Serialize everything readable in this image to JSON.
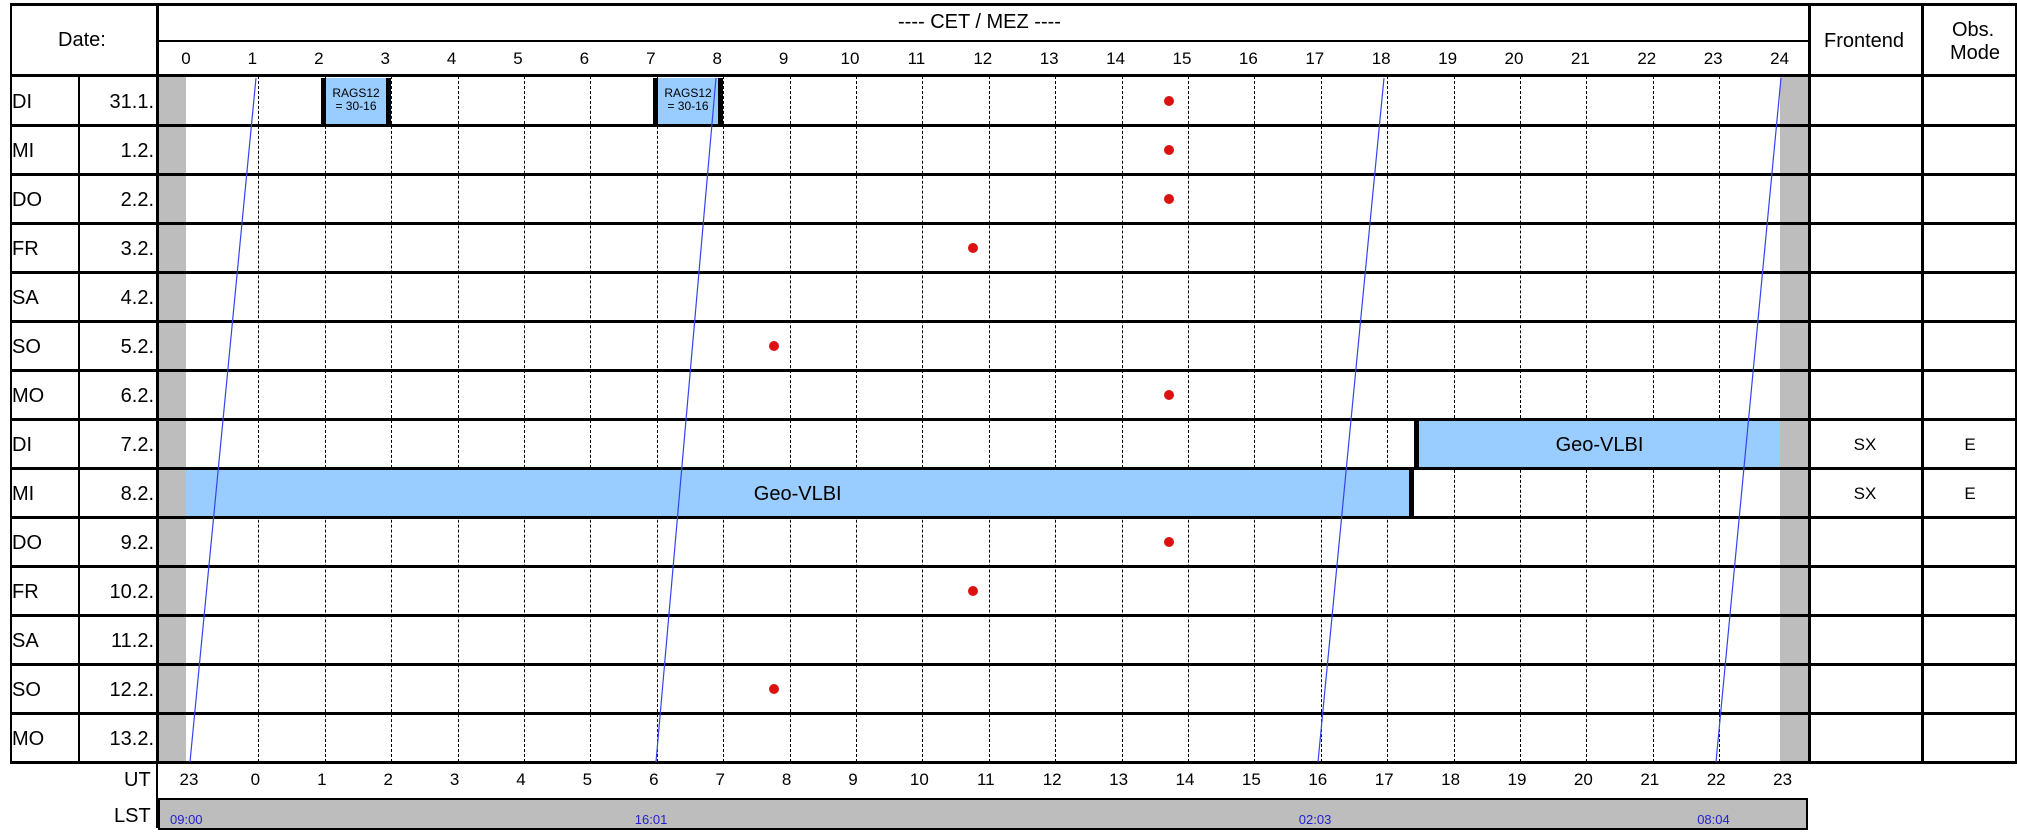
{
  "header": {
    "date_label": "Date:",
    "timezone_label": "---- CET / MEZ ----",
    "frontend_label": "Frontend",
    "obs_mode_label_1": "Obs.",
    "obs_mode_label_2": "Mode",
    "cet_hours": [
      "0",
      "1",
      "2",
      "3",
      "4",
      "5",
      "6",
      "7",
      "8",
      "9",
      "10",
      "11",
      "12",
      "13",
      "14",
      "15",
      "16",
      "17",
      "18",
      "19",
      "20",
      "21",
      "22",
      "23",
      "24"
    ]
  },
  "rows": [
    {
      "day": "DI",
      "date": "31.1.",
      "frontend": "",
      "mode": ""
    },
    {
      "day": "MI",
      "date": "1.2.",
      "frontend": "",
      "mode": ""
    },
    {
      "day": "DO",
      "date": "2.2.",
      "frontend": "",
      "mode": ""
    },
    {
      "day": "FR",
      "date": "3.2.",
      "frontend": "",
      "mode": ""
    },
    {
      "day": "SA",
      "date": "4.2.",
      "frontend": "",
      "mode": ""
    },
    {
      "day": "SO",
      "date": "5.2.",
      "frontend": "",
      "mode": ""
    },
    {
      "day": "MO",
      "date": "6.2.",
      "frontend": "",
      "mode": ""
    },
    {
      "day": "DI",
      "date": "7.2.",
      "frontend": "SX",
      "mode": "E"
    },
    {
      "day": "MI",
      "date": "8.2.",
      "frontend": "SX",
      "mode": "E"
    },
    {
      "day": "DO",
      "date": "9.2.",
      "frontend": "",
      "mode": ""
    },
    {
      "day": "FR",
      "date": "10.2.",
      "frontend": "",
      "mode": ""
    },
    {
      "day": "SA",
      "date": "11.2.",
      "frontend": "",
      "mode": ""
    },
    {
      "day": "SO",
      "date": "12.2.",
      "frontend": "",
      "mode": ""
    },
    {
      "day": "MO",
      "date": "13.2.",
      "frontend": "",
      "mode": ""
    }
  ],
  "events": {
    "rags_1": {
      "line1": "RAGS12",
      "line2": "= 30-16",
      "start_hour": 2,
      "end_hour": 3
    },
    "rags_2": {
      "line1": "RAGS12",
      "line2": "= 30-16",
      "start_hour": 7,
      "end_hour": 8
    },
    "geo_1": {
      "label": "Geo-VLBI",
      "row": 7,
      "start_hour": 18.5,
      "end_hour": 24
    },
    "geo_2": {
      "label": "Geo-VLBI",
      "row": 8,
      "start_hour": 0,
      "end_hour": 18.5
    }
  },
  "dots": [
    {
      "row": 0,
      "hour": 14.8
    },
    {
      "row": 1,
      "hour": 14.8
    },
    {
      "row": 2,
      "hour": 14.8
    },
    {
      "row": 3,
      "hour": 11.85
    },
    {
      "row": 5,
      "hour": 8.85
    },
    {
      "row": 6,
      "hour": 14.8
    },
    {
      "row": 9,
      "hour": 14.8
    },
    {
      "row": 10,
      "hour": 11.85
    },
    {
      "row": 12,
      "hour": 8.85
    }
  ],
  "footer": {
    "ut_label": "UT",
    "lst_label": "LST",
    "ut_hours": [
      "23",
      "0",
      "1",
      "2",
      "3",
      "4",
      "5",
      "6",
      "7",
      "8",
      "9",
      "10",
      "11",
      "12",
      "13",
      "14",
      "15",
      "16",
      "17",
      "18",
      "19",
      "20",
      "21",
      "22",
      "23"
    ],
    "lst_marks": [
      {
        "text": "09:00",
        "hour": 0
      },
      {
        "text": "16:01",
        "hour": 7
      },
      {
        "text": "02:03",
        "hour": 17
      },
      {
        "text": "08:04",
        "hour": 23
      }
    ]
  },
  "colors": {
    "event": "#99ccff",
    "grey": "#bdbdbd",
    "dot": "#dd1111",
    "lst_line": "#3344ee"
  }
}
